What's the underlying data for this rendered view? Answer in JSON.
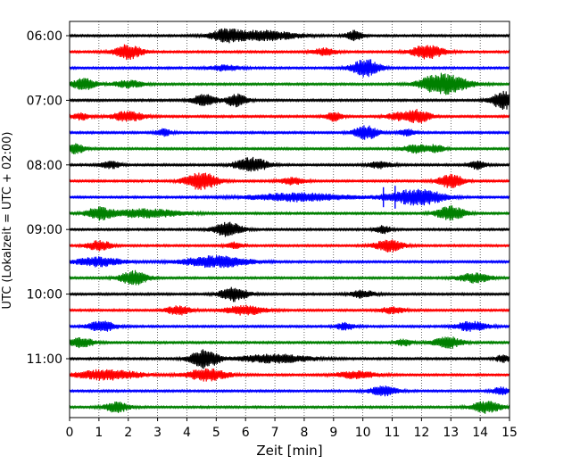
{
  "chart_data": {
    "type": "line",
    "title": "",
    "xlabel": "Zeit  [min]",
    "ylabel": "UTC (Lokalzeit = UTC + 02:00)",
    "xlim": [
      0,
      15
    ],
    "x_ticks": [
      "0",
      "1",
      "2",
      "3",
      "4",
      "5",
      "6",
      "7",
      "8",
      "9",
      "10",
      "11",
      "12",
      "13",
      "14",
      "15"
    ],
    "y_ticks": [
      "06:00",
      "07:00",
      "08:00",
      "09:00",
      "10:00",
      "11:00"
    ],
    "grid": "vertical dotted",
    "series_colors": [
      "#000000",
      "#ff0000",
      "#0000ff",
      "#008000"
    ],
    "traces": [
      {
        "start": "06:00",
        "color": "#000000",
        "bursts": [
          [
            5.3,
            0.35,
            2.0
          ],
          [
            6.5,
            0.9,
            2.2
          ],
          [
            9.7,
            0.2,
            2.2
          ]
        ]
      },
      {
        "start": "06:15",
        "color": "#ff0000",
        "bursts": [
          [
            2.0,
            0.35,
            3.2
          ],
          [
            8.7,
            0.3,
            1.5
          ],
          [
            12.2,
            0.4,
            3.0
          ]
        ]
      },
      {
        "start": "06:30",
        "color": "#0000ff",
        "bursts": [
          [
            10.1,
            0.35,
            3.8
          ],
          [
            5.3,
            0.4,
            1.2
          ]
        ]
      },
      {
        "start": "06:45",
        "color": "#008000",
        "bursts": [
          [
            0.5,
            0.3,
            2.5
          ],
          [
            2.0,
            0.4,
            1.5
          ],
          [
            12.4,
            0.4,
            2.5
          ],
          [
            13.0,
            0.5,
            3.2
          ]
        ]
      },
      {
        "start": "07:00",
        "color": "#000000",
        "bursts": [
          [
            4.6,
            0.3,
            2.5
          ],
          [
            5.7,
            0.25,
            3.0
          ],
          [
            14.8,
            0.3,
            3.8
          ]
        ]
      },
      {
        "start": "07:15",
        "color": "#ff0000",
        "bursts": [
          [
            0.4,
            0.2,
            1.5
          ],
          [
            2.0,
            0.4,
            2.2
          ],
          [
            9.0,
            0.2,
            2.0
          ],
          [
            11.2,
            0.3,
            1.5
          ],
          [
            11.9,
            0.3,
            2.8
          ]
        ]
      },
      {
        "start": "07:30",
        "color": "#0000ff",
        "bursts": [
          [
            3.2,
            0.2,
            1.5
          ],
          [
            10.1,
            0.3,
            3.0
          ],
          [
            11.5,
            0.2,
            1.5
          ]
        ]
      },
      {
        "start": "07:45",
        "color": "#008000",
        "bursts": [
          [
            0.2,
            0.25,
            2.0
          ],
          [
            11.8,
            0.3,
            1.8
          ],
          [
            12.5,
            0.2,
            1.6
          ]
        ]
      },
      {
        "start": "08:00",
        "color": "#000000",
        "bursts": [
          [
            1.4,
            0.25,
            1.5
          ],
          [
            6.2,
            0.4,
            3.2
          ],
          [
            10.6,
            0.3,
            1.5
          ],
          [
            13.9,
            0.2,
            1.8
          ]
        ]
      },
      {
        "start": "08:15",
        "color": "#ff0000",
        "bursts": [
          [
            4.5,
            0.4,
            3.8
          ],
          [
            7.6,
            0.3,
            1.5
          ],
          [
            13.0,
            0.3,
            3.0
          ]
        ]
      },
      {
        "start": "08:30",
        "color": "#0000ff",
        "bursts": [
          [
            7.8,
            1.2,
            1.8
          ],
          [
            11.5,
            0.6,
            2.2
          ],
          [
            12.2,
            0.5,
            2.0
          ]
        ],
        "spikes": [
          [
            10.7,
            7
          ],
          [
            11.1,
            8
          ],
          [
            11.4,
            5
          ]
        ]
      },
      {
        "start": "08:45",
        "color": "#008000",
        "bursts": [
          [
            1.0,
            0.3,
            2.5
          ],
          [
            2.6,
            0.9,
            1.8
          ],
          [
            13.0,
            0.35,
            3.0
          ]
        ]
      },
      {
        "start": "09:00",
        "color": "#000000",
        "bursts": [
          [
            5.4,
            0.35,
            3.0
          ],
          [
            10.7,
            0.2,
            1.6
          ]
        ]
      },
      {
        "start": "09:15",
        "color": "#ff0000",
        "bursts": [
          [
            1.0,
            0.3,
            2.2
          ],
          [
            10.9,
            0.35,
            2.6
          ],
          [
            5.6,
            0.2,
            1.4
          ]
        ]
      },
      {
        "start": "09:30",
        "color": "#0000ff",
        "bursts": [
          [
            1.0,
            0.6,
            2.0
          ],
          [
            5.0,
            0.8,
            2.5
          ]
        ]
      },
      {
        "start": "09:45",
        "color": "#008000",
        "bursts": [
          [
            2.2,
            0.35,
            3.0
          ],
          [
            13.8,
            0.4,
            2.0
          ]
        ]
      },
      {
        "start": "10:00",
        "color": "#000000",
        "bursts": [
          [
            5.6,
            0.35,
            3.0
          ],
          [
            10.0,
            0.3,
            1.6
          ]
        ]
      },
      {
        "start": "10:15",
        "color": "#ff0000",
        "bursts": [
          [
            3.7,
            0.3,
            2.0
          ],
          [
            6.0,
            0.5,
            2.0
          ],
          [
            11.0,
            0.3,
            1.4
          ]
        ]
      },
      {
        "start": "10:30",
        "color": "#0000ff",
        "bursts": [
          [
            1.1,
            0.35,
            2.2
          ],
          [
            13.7,
            0.4,
            2.0
          ],
          [
            9.4,
            0.25,
            1.5
          ]
        ]
      },
      {
        "start": "10:45",
        "color": "#008000",
        "bursts": [
          [
            0.4,
            0.3,
            2.2
          ],
          [
            11.4,
            0.2,
            1.5
          ],
          [
            12.9,
            0.35,
            2.5
          ]
        ]
      },
      {
        "start": "11:00",
        "color": "#000000",
        "bursts": [
          [
            4.6,
            0.35,
            4.0
          ],
          [
            7.0,
            0.9,
            1.8
          ],
          [
            14.8,
            0.2,
            1.6
          ]
        ]
      },
      {
        "start": "11:15",
        "color": "#ff0000",
        "bursts": [
          [
            1.3,
            0.8,
            2.2
          ],
          [
            4.7,
            0.5,
            2.6
          ],
          [
            9.8,
            0.5,
            1.6
          ]
        ]
      },
      {
        "start": "11:30",
        "color": "#0000ff",
        "bursts": [
          [
            10.7,
            0.35,
            2.0
          ],
          [
            14.7,
            0.2,
            1.6
          ]
        ]
      },
      {
        "start": "11:45",
        "color": "#008000",
        "bursts": [
          [
            1.6,
            0.3,
            2.2
          ],
          [
            14.2,
            0.35,
            2.5
          ]
        ]
      }
    ]
  }
}
